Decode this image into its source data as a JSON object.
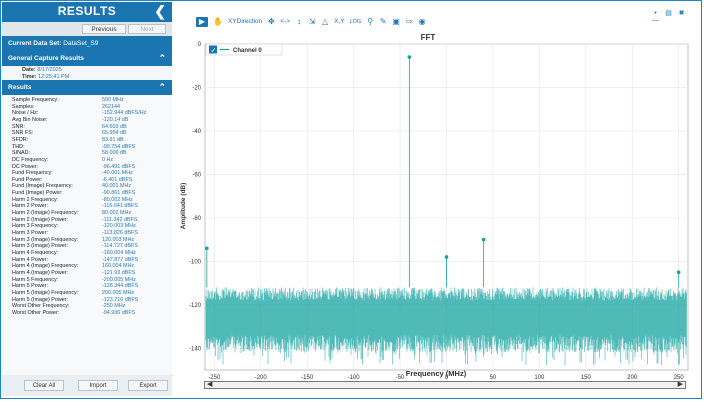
{
  "panel": {
    "title": "RESULTS",
    "collapse_icon": "chevron-left-icon",
    "previous_label": "Previous",
    "next_label": "Next",
    "dataset_label": "Current Data Set:",
    "dataset_value": "DataSet_S9",
    "general_header": "General Capture Results",
    "date_label": "Date:",
    "date_value": "8/17/2025",
    "time_label": "Time:",
    "time_value": "12:25:41 PM",
    "results_header": "Results",
    "results": [
      {
        "k": "Sample Frequency:",
        "v": "500 MHz"
      },
      {
        "k": "Samples:",
        "v": "262144"
      },
      {
        "k": "Noise / Hz:",
        "v": "-152.944 dBFS/Hz"
      },
      {
        "k": "Avg Bin Noise:",
        "v": "-120.14 dB"
      },
      {
        "k": "SNR:",
        "v": "64.603 dB"
      },
      {
        "k": "SNR FS:",
        "v": "65.954 dB"
      },
      {
        "k": "SFDR:",
        "v": "83.91 dB"
      },
      {
        "k": "THD:",
        "v": "-90.754 dBFS"
      },
      {
        "k": "SINAD:",
        "v": "58.006 dB"
      },
      {
        "k": "DC Frequency:",
        "v": "0 Hz"
      },
      {
        "k": "DC Power:",
        "v": "-96.491 dBFS"
      },
      {
        "k": "Fund Frequency:",
        "v": "-40.001 MHz"
      },
      {
        "k": "Fund Power:",
        "v": "-6.401 dBFS"
      },
      {
        "k": "Fund (Image) Frequency:",
        "v": "40.001 MHz"
      },
      {
        "k": "Fund (Image) Power:",
        "v": "-90.861 dBFS"
      },
      {
        "k": "Harm 2 Frequency:",
        "v": "-80.002 MHz"
      },
      {
        "k": "Harm 2 Power:",
        "v": "-116.041 dBFS"
      },
      {
        "k": "Harm 2 (Image) Frequency:",
        "v": "80.002 MHz"
      },
      {
        "k": "Harm 2 (Image) Power:",
        "v": "-111.342 dBFS"
      },
      {
        "k": "Harm 3 Frequency:",
        "v": "-120.003 MHz"
      },
      {
        "k": "Harm 3 Power:",
        "v": "-113.826 dBFS"
      },
      {
        "k": "Harm 3 (Image) Frequency:",
        "v": "120.003 MHz"
      },
      {
        "k": "Harm 3 (Image) Power:",
        "v": "-114.727 dBFS"
      },
      {
        "k": "Harm 4 Frequency:",
        "v": "-160.004 MHz"
      },
      {
        "k": "Harm 4 Power:",
        "v": "-147.877 dBFS"
      },
      {
        "k": "Harm 4 (Image) Frequency:",
        "v": "160.004 MHz"
      },
      {
        "k": "Harm 4 (Image) Power:",
        "v": "-121.93 dBFS"
      },
      {
        "k": "Harm 5 Frequency:",
        "v": "-200.005 MHz"
      },
      {
        "k": "Harm 5 Power:",
        "v": "-128.344 dBFS"
      },
      {
        "k": "Harm 5 (Image) Frequency:",
        "v": "200.005 MHz"
      },
      {
        "k": "Harm 5 (Image) Power:",
        "v": "-123.716 dBFS"
      },
      {
        "k": "Worst Other Frequency:",
        "v": "-250 MHz"
      },
      {
        "k": "Worst Other Power:",
        "v": "-94.936 dBFS"
      }
    ],
    "buttons": {
      "clear": "Clear All",
      "import": "Import",
      "export": "Export"
    }
  },
  "toolbar": {
    "xy_direction_label": "XYDirection",
    "xy_label": "X,Y",
    "log_label": "LOG",
    "icons": [
      "cursor-icon",
      "pan-icon",
      "move-icon",
      "xy-arrows-icon",
      "vertical-arrows-icon",
      "fit-icon",
      "bell-icon",
      "xy-icon",
      "log-icon",
      "zoom-icon",
      "pen-icon",
      "screen-icon",
      "export-icon",
      "save-icon"
    ]
  },
  "window": {
    "icons": [
      "pin-icon",
      "restore-icon",
      "close-icon"
    ]
  },
  "chart_data": {
    "type": "line",
    "title": "FFT",
    "xlabel": "Frequency (MHz)",
    "ylabel": "Amplitude (dB)",
    "xlim": [
      -260,
      260
    ],
    "ylim": [
      -150,
      0
    ],
    "xticks": [
      -250,
      -200,
      -150,
      -100,
      -50,
      0,
      50,
      100,
      150,
      200,
      250
    ],
    "yticks": [
      0,
      -20,
      -40,
      -60,
      -80,
      -100,
      -120,
      -140
    ],
    "grid": true,
    "legend_position": "top-left",
    "series": [
      {
        "name": "Channel 0",
        "color": "#16a3a0"
      }
    ],
    "noise_floor_range": [
      -140,
      -112
    ],
    "peaks": [
      {
        "x": -258,
        "y": -94
      },
      {
        "x": -40,
        "y": -6
      },
      {
        "x": 0,
        "y": -98
      },
      {
        "x": 40,
        "y": -90
      },
      {
        "x": 250,
        "y": -105
      }
    ]
  }
}
